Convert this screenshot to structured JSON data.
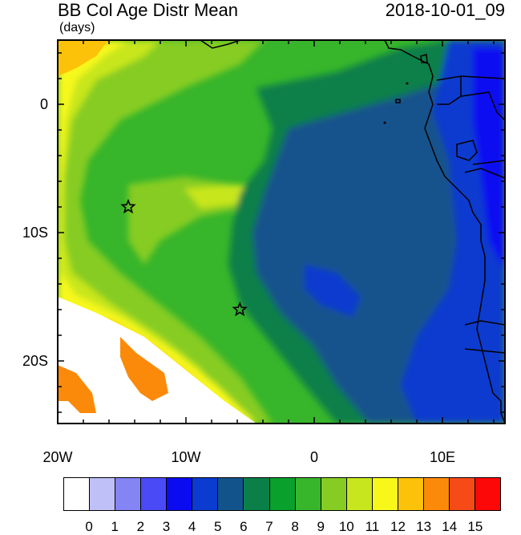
{
  "title": "BB Col Age Distr Mean",
  "timestamp": "2018-10-01_09",
  "units": "(days)",
  "map": {
    "lat_labels": [
      "0",
      "10S",
      "20S"
    ],
    "lon_labels": [
      "20W",
      "10W",
      "0",
      "10E"
    ],
    "markers": [
      {
        "name": "star",
        "lon": -14.5,
        "lat": -8
      },
      {
        "name": "star",
        "lon": -5.8,
        "lat": -16
      }
    ],
    "colors": {
      "ocean_fill": "#2eb02e",
      "land_fill": "#0c46cc",
      "coastline": "#000000"
    }
  },
  "colorbar": {
    "labels": [
      "0",
      "1",
      "2",
      "3",
      "4",
      "5",
      "6",
      "7",
      "8",
      "9",
      "10",
      "11",
      "12",
      "13",
      "14",
      "15"
    ],
    "colors": [
      "#ffffff",
      "#c0c0f8",
      "#8484f4",
      "#4a4af6",
      "#0b0bf2",
      "#0b3bcf",
      "#12538c",
      "#0a7f48",
      "#0aa02c",
      "#37b52b",
      "#86cc22",
      "#c8e61e",
      "#f7f81a",
      "#fcc209",
      "#fc8a0a",
      "#f64a17",
      "#fc0808"
    ]
  }
}
